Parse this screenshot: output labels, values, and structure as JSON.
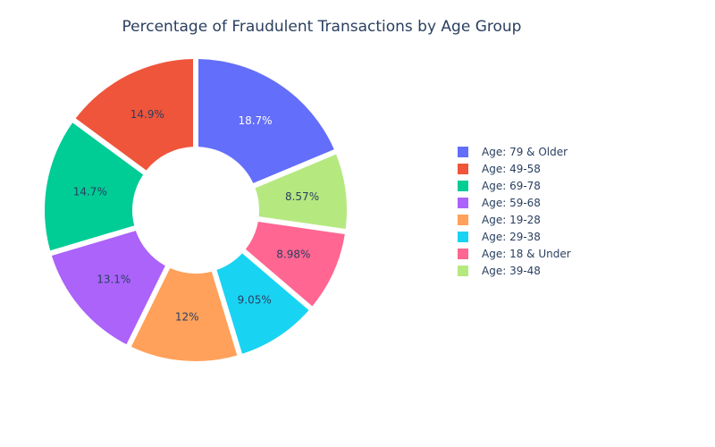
{
  "chart_data": {
    "type": "pie",
    "title": "Percentage of Fraudulent Transactions by Age Group",
    "hole": true,
    "legend_position": "right",
    "slices": [
      {
        "label": "Age: 79 & Older",
        "value": 18.7,
        "text": "18.7%",
        "color": "#636efa",
        "text_color": "#ffffff"
      },
      {
        "label": "Age: 39-48",
        "value": 8.57,
        "text": "8.57%",
        "color": "#b6e880",
        "text_color": "#2a3f5f"
      },
      {
        "label": "Age: 18 & Under",
        "value": 8.98,
        "text": "8.98%",
        "color": "#ff6692",
        "text_color": "#2a3f5f"
      },
      {
        "label": "Age: 29-38",
        "value": 9.05,
        "text": "9.05%",
        "color": "#19d3f3",
        "text_color": "#2a3f5f"
      },
      {
        "label": "Age: 19-28",
        "value": 12.0,
        "text": "12%",
        "color": "#ffa15a",
        "text_color": "#2a3f5f"
      },
      {
        "label": "Age: 59-68",
        "value": 13.1,
        "text": "13.1%",
        "color": "#ab63fa",
        "text_color": "#2a3f5f"
      },
      {
        "label": "Age: 69-78",
        "value": 14.7,
        "text": "14.7%",
        "color": "#00cc96",
        "text_color": "#2a3f5f"
      },
      {
        "label": "Age: 49-58",
        "value": 14.9,
        "text": "14.9%",
        "color": "#ef553b",
        "text_color": "#2a3f5f"
      }
    ],
    "legend": [
      {
        "label": "Age: 79 & Older",
        "color": "#636efa"
      },
      {
        "label": "Age: 49-58",
        "color": "#ef553b"
      },
      {
        "label": "Age: 69-78",
        "color": "#00cc96"
      },
      {
        "label": "Age: 59-68",
        "color": "#ab63fa"
      },
      {
        "label": "Age: 19-28",
        "color": "#ffa15a"
      },
      {
        "label": "Age: 29-38",
        "color": "#19d3f3"
      },
      {
        "label": "Age: 18 & Under",
        "color": "#ff6692"
      },
      {
        "label": "Age: 39-48",
        "color": "#b6e880"
      }
    ]
  }
}
